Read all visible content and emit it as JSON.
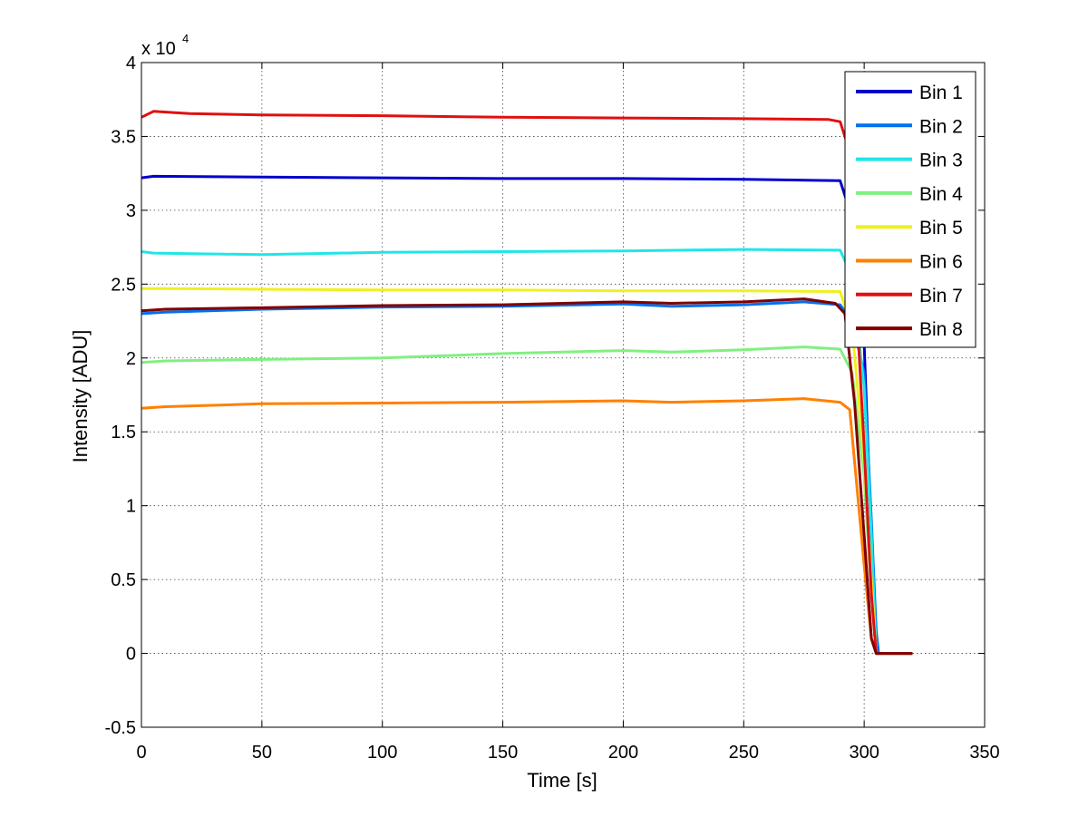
{
  "chart_data": {
    "type": "line",
    "title": "",
    "xlabel": "Time [s]",
    "ylabel": "Intensity [ADU]",
    "y_exponent_base": "x 10",
    "y_exponent_power": "4",
    "xlim": [
      0,
      350
    ],
    "ylim": [
      -0.5,
      4
    ],
    "x_ticks": [
      0,
      50,
      100,
      150,
      200,
      250,
      300,
      350
    ],
    "x_tick_labels": [
      "0",
      "50",
      "100",
      "150",
      "200",
      "250",
      "300",
      "350"
    ],
    "y_ticks": [
      -0.5,
      0,
      0.5,
      1,
      1.5,
      2,
      2.5,
      3,
      3.5,
      4
    ],
    "y_tick_labels": [
      "-0.5",
      "0",
      "0.5",
      "1",
      "1.5",
      "2",
      "2.5",
      "3",
      "3.5",
      "4"
    ],
    "grid": true,
    "legend_position": "top-right",
    "series": [
      {
        "name": "Bin 1",
        "color": "#0000cc",
        "x": [
          0,
          5,
          50,
          100,
          150,
          200,
          250,
          290,
          295,
          300,
          302,
          304,
          305,
          310,
          320
        ],
        "y": [
          3.22,
          3.23,
          3.225,
          3.22,
          3.215,
          3.215,
          3.21,
          3.2,
          2.95,
          2.1,
          1.2,
          0.3,
          0.0,
          0.0,
          0.0
        ]
      },
      {
        "name": "Bin 2",
        "color": "#0070f0",
        "x": [
          0,
          10,
          50,
          100,
          150,
          200,
          220,
          250,
          275,
          290,
          295,
          300,
          303,
          305,
          306,
          310,
          320
        ],
        "y": [
          2.3,
          2.31,
          2.33,
          2.345,
          2.35,
          2.365,
          2.35,
          2.36,
          2.38,
          2.36,
          2.25,
          1.9,
          0.9,
          0.15,
          0.0,
          0.0,
          0.0
        ]
      },
      {
        "name": "Bin 3",
        "color": "#20e6e6",
        "x": [
          0,
          5,
          50,
          100,
          150,
          200,
          250,
          290,
          295,
          300,
          303,
          305,
          310,
          320
        ],
        "y": [
          2.72,
          2.71,
          2.7,
          2.715,
          2.72,
          2.725,
          2.735,
          2.73,
          2.55,
          1.8,
          0.8,
          0.0,
          0.0,
          0.0
        ]
      },
      {
        "name": "Bin 4",
        "color": "#80f080",
        "x": [
          0,
          10,
          50,
          100,
          150,
          200,
          220,
          250,
          275,
          290,
          295,
          300,
          303,
          305,
          310,
          320
        ],
        "y": [
          1.97,
          1.98,
          1.99,
          2.0,
          2.03,
          2.05,
          2.04,
          2.055,
          2.075,
          2.06,
          1.9,
          1.2,
          0.4,
          0.0,
          0.0,
          0.0
        ]
      },
      {
        "name": "Bin 5",
        "color": "#f0f020",
        "x": [
          0,
          10,
          50,
          100,
          150,
          200,
          250,
          290,
          295,
          300,
          303,
          305,
          310,
          320
        ],
        "y": [
          2.47,
          2.47,
          2.465,
          2.46,
          2.46,
          2.455,
          2.455,
          2.45,
          2.2,
          1.3,
          0.5,
          0.0,
          0.0,
          0.0
        ]
      },
      {
        "name": "Bin 6",
        "color": "#ff8000",
        "x": [
          0,
          10,
          50,
          100,
          150,
          200,
          220,
          250,
          275,
          290,
          294,
          296,
          300,
          303,
          305,
          310,
          320
        ],
        "y": [
          1.66,
          1.67,
          1.69,
          1.695,
          1.7,
          1.71,
          1.7,
          1.71,
          1.725,
          1.7,
          1.65,
          1.3,
          0.6,
          0.1,
          0.0,
          0.0,
          0.0
        ]
      },
      {
        "name": "Bin 7",
        "color": "#e01010",
        "x": [
          0,
          5,
          20,
          50,
          100,
          150,
          200,
          250,
          285,
          290,
          293,
          296,
          300,
          303,
          305,
          310,
          320
        ],
        "y": [
          3.63,
          3.67,
          3.655,
          3.645,
          3.64,
          3.63,
          3.625,
          3.62,
          3.615,
          3.6,
          3.45,
          2.6,
          1.4,
          0.4,
          0.0,
          0.0,
          0.0
        ]
      },
      {
        "name": "Bin 8",
        "color": "#800000",
        "x": [
          0,
          10,
          50,
          100,
          150,
          200,
          220,
          250,
          275,
          288,
          292,
          296,
          300,
          303,
          305,
          310,
          320
        ],
        "y": [
          2.32,
          2.33,
          2.34,
          2.355,
          2.36,
          2.38,
          2.37,
          2.38,
          2.4,
          2.37,
          2.3,
          1.7,
          0.8,
          0.1,
          0.0,
          0.0,
          0.0
        ]
      }
    ]
  }
}
